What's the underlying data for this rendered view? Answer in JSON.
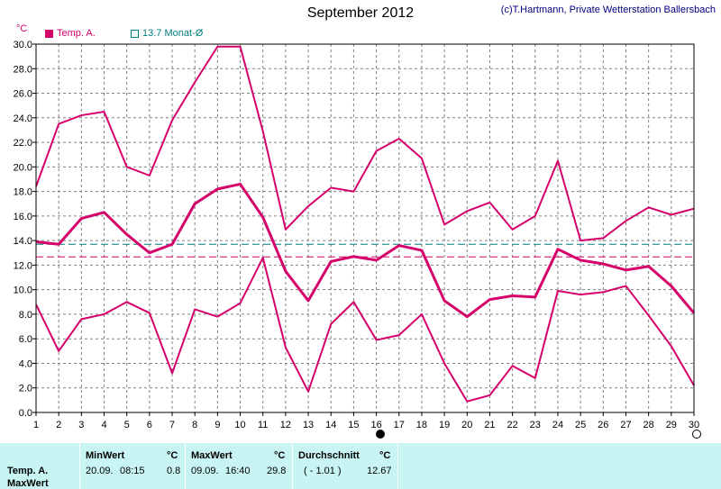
{
  "header": {
    "title": "September 2012",
    "credit": "(c)T.Hartmann, Private Wetterstation Ballersbach",
    "unit": "°C"
  },
  "legend": [
    {
      "label": "Temp. A.",
      "color": "#d6006b",
      "style": "filled"
    },
    {
      "label": "13.7 Monat-Ø",
      "color": "#007f7f",
      "style": "outline"
    }
  ],
  "colors": {
    "series": "#d6006b",
    "avg_line": "#007f7f",
    "ref_line": "#d6006b",
    "grid": "#808080"
  },
  "markers": {
    "filled_day": 16,
    "open_day": 30
  },
  "chart_data": {
    "type": "line",
    "title": "September 2012",
    "xlabel": "",
    "ylabel": "°C",
    "x": [
      1,
      2,
      3,
      4,
      5,
      6,
      7,
      8,
      9,
      10,
      11,
      12,
      13,
      14,
      15,
      16,
      17,
      18,
      19,
      20,
      21,
      22,
      23,
      24,
      25,
      26,
      27,
      28,
      29,
      30
    ],
    "xlim": [
      1,
      30
    ],
    "ylim": [
      0,
      30
    ],
    "yticks": [
      "0.0",
      "2.0",
      "4.0",
      "6.0",
      "8.0",
      "10.0",
      "12.0",
      "14.0",
      "16.0",
      "18.0",
      "20.0",
      "22.0",
      "24.0",
      "26.0",
      "28.0",
      "30.0"
    ],
    "grid": true,
    "series": [
      {
        "name": "Temp. A.",
        "role": "max",
        "values": [
          18.4,
          23.5,
          24.2,
          24.5,
          20.0,
          19.3,
          23.8,
          26.9,
          29.8,
          29.8,
          22.9,
          14.9,
          16.8,
          18.3,
          18.0,
          21.3,
          22.3,
          20.7,
          15.3,
          16.4,
          17.1,
          14.9,
          16.0,
          20.5,
          14.0,
          14.2,
          15.6,
          16.7,
          16.1,
          16.6
        ]
      },
      {
        "name": "Temp. A.",
        "role": "mean",
        "values": [
          13.9,
          13.7,
          15.8,
          16.3,
          14.5,
          13.0,
          13.7,
          17.0,
          18.2,
          18.6,
          15.9,
          11.5,
          9.1,
          12.3,
          12.7,
          12.4,
          13.6,
          13.2,
          9.1,
          7.8,
          9.2,
          9.5,
          9.4,
          13.3,
          12.4,
          12.1,
          11.6,
          11.9,
          10.3,
          8.1
        ]
      },
      {
        "name": "Temp. A.",
        "role": "min",
        "values": [
          8.8,
          5.0,
          7.6,
          8.0,
          9.0,
          8.1,
          3.2,
          8.4,
          7.8,
          8.9,
          12.6,
          5.3,
          1.7,
          7.2,
          9.0,
          5.9,
          6.3,
          8.0,
          4.0,
          0.9,
          1.4,
          3.8,
          2.8,
          9.9,
          9.6,
          9.8,
          10.3,
          7.9,
          5.4,
          2.2
        ]
      }
    ],
    "reference_lines": [
      {
        "label": "13.7 Monat-Ø",
        "value": 13.7,
        "color": "#007f7f"
      },
      {
        "value": 12.67,
        "color": "#d6006b"
      }
    ]
  },
  "stats": {
    "row_label": "Temp. A.",
    "row_label2": "MaxWert",
    "min": {
      "header": "MinWert",
      "unit": "°C",
      "date": "20.09.",
      "time": "08:15",
      "value": "0.8"
    },
    "max": {
      "header": "MaxWert",
      "unit": "°C",
      "date": "09.09.",
      "time": "16:40",
      "value": "29.8"
    },
    "avg": {
      "header": "Durchschnitt",
      "unit": "°C",
      "delta": "( - 1.01 )",
      "value": "12.67"
    }
  }
}
